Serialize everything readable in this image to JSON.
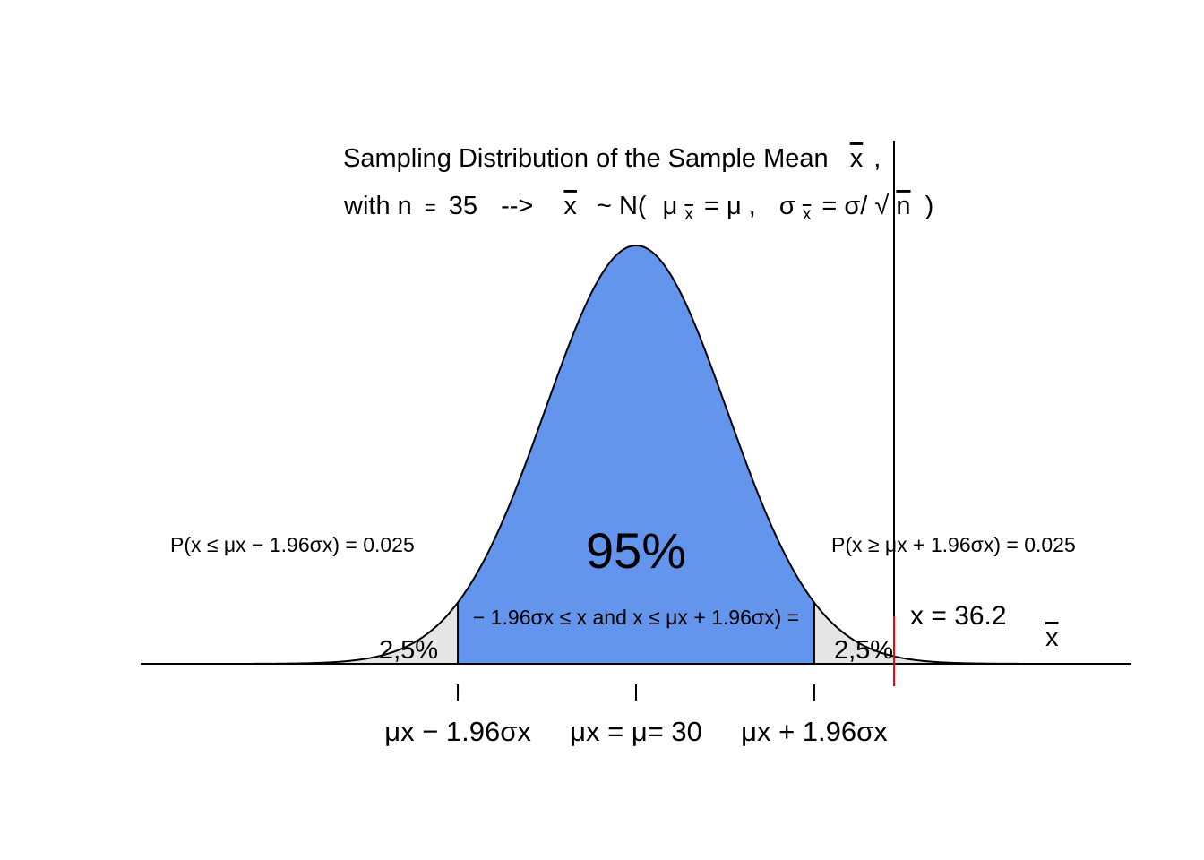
{
  "chart_data": {
    "type": "area",
    "title_line1": "Sampling Distribution of the Sample Mean",
    "title_symbol": "x",
    "title_comma": ",",
    "title_line2": {
      "prefix": "with n",
      "eq": "=",
      "n": "35",
      "arrow": "-->",
      "xbar": "x",
      "tilde": "~ N(",
      "mu": "μ",
      "sub_x": "x",
      "equals_mu": "= μ ,",
      "sigma": "σ",
      "equals_sigma": "= σ/",
      "sqrt": "√",
      "n_under": "n",
      "close": ")"
    },
    "distribution": {
      "mean": 30,
      "n": 35
    },
    "x_axis_symbol": "x",
    "center_pct_label": "95%",
    "interval_label": "− 1.96σx ≤ x and x ≤ μx + 1.96σx) =",
    "left_tail_label": "2,5%",
    "right_tail_label": "2,5%",
    "left_prob_label": "P(x ≤ μx − 1.96σx) = 0.025",
    "right_prob_label": "P(x ≥ μx + 1.96σx) = 0.025",
    "observed_label": "x = 36.2",
    "observed_value": 36.2,
    "z_critical": 1.96,
    "tick_labels": [
      "μx − 1.96σx",
      "μx = μ= 30",
      "μx + 1.96σx"
    ],
    "colors": {
      "center": "#6495ED",
      "tails": "#E5E5E5",
      "curve": "#000000",
      "observed_line": "#FF0000",
      "center_text": "#FFFFFF"
    }
  }
}
